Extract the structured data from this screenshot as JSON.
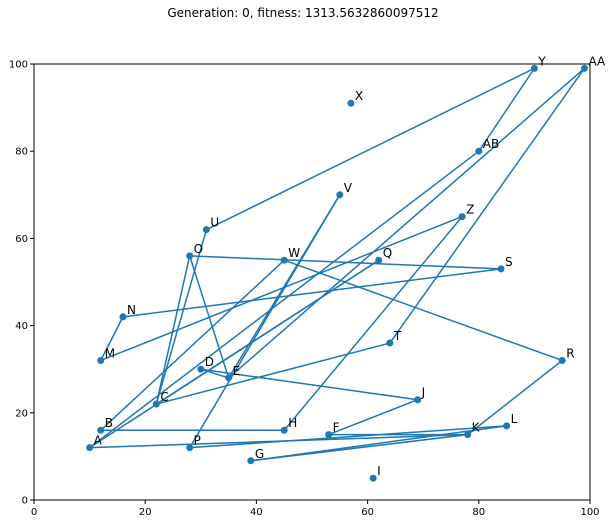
{
  "chart_data": {
    "type": "line",
    "title": "Generation: 0, fitness: 1313.5632860097512",
    "xlabel": "",
    "ylabel": "",
    "xlim": [
      0,
      100
    ],
    "ylim": [
      0,
      100
    ],
    "x_ticks": [
      "0",
      "20",
      "40",
      "60",
      "80",
      "100"
    ],
    "y_ticks": [
      "0",
      "20",
      "40",
      "60",
      "80",
      "100"
    ],
    "grid": false,
    "line_color": "#1f77b4",
    "marker_color": "#1f77b4",
    "points": [
      {
        "label": "A",
        "x": 10,
        "y": 12
      },
      {
        "label": "B",
        "x": 12,
        "y": 16
      },
      {
        "label": "C",
        "x": 22,
        "y": 22
      },
      {
        "label": "D",
        "x": 30,
        "y": 30
      },
      {
        "label": "E",
        "x": 35,
        "y": 28
      },
      {
        "label": "F",
        "x": 53,
        "y": 15
      },
      {
        "label": "G",
        "x": 39,
        "y": 9
      },
      {
        "label": "H",
        "x": 45,
        "y": 16
      },
      {
        "label": "I",
        "x": 61,
        "y": 5
      },
      {
        "label": "J",
        "x": 69,
        "y": 23
      },
      {
        "label": "K",
        "x": 78,
        "y": 15
      },
      {
        "label": "L",
        "x": 85,
        "y": 17
      },
      {
        "label": "M",
        "x": 12,
        "y": 32
      },
      {
        "label": "N",
        "x": 16,
        "y": 42
      },
      {
        "label": "O",
        "x": 28,
        "y": 56
      },
      {
        "label": "P",
        "x": 28,
        "y": 12
      },
      {
        "label": "Q",
        "x": 62,
        "y": 55
      },
      {
        "label": "R",
        "x": 95,
        "y": 32
      },
      {
        "label": "S",
        "x": 84,
        "y": 53
      },
      {
        "label": "T",
        "x": 64,
        "y": 36
      },
      {
        "label": "U",
        "x": 31,
        "y": 62
      },
      {
        "label": "V",
        "x": 55,
        "y": 70
      },
      {
        "label": "W",
        "x": 45,
        "y": 55
      },
      {
        "label": "X",
        "x": 57,
        "y": 91
      },
      {
        "label": "Y",
        "x": 90,
        "y": 99
      },
      {
        "label": "Z",
        "x": 77,
        "y": 65
      },
      {
        "label": "AA",
        "x": 99,
        "y": 99
      },
      {
        "label": "AB",
        "x": 80,
        "y": 80
      }
    ],
    "route": [
      "A",
      "AB",
      "Y",
      "U",
      "C",
      "T",
      "AA",
      "E",
      "V",
      "P",
      "L",
      "G",
      "K",
      "R",
      "W",
      "B",
      "H",
      "Z",
      "M",
      "N",
      "S",
      "O",
      "C",
      "Q",
      "A",
      "K",
      "F",
      "J",
      "D",
      "E",
      "O"
    ]
  }
}
